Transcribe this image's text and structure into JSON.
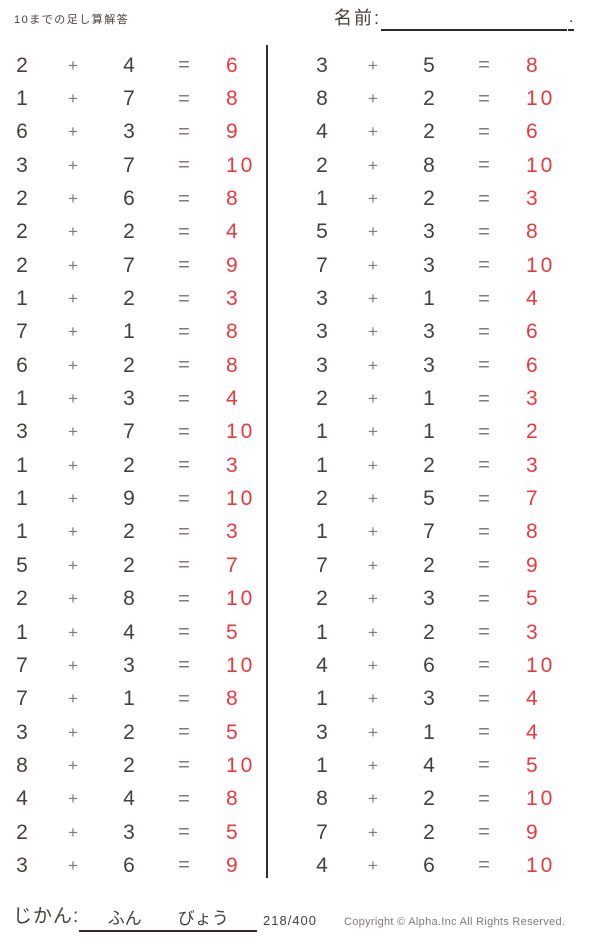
{
  "header": {
    "title": "10までの足し算解答",
    "name_label": "名前:",
    "name_suffix": "."
  },
  "problems": {
    "operator": "+",
    "equals": "=",
    "left": [
      {
        "a": 2,
        "b": 4,
        "ans": 6
      },
      {
        "a": 1,
        "b": 7,
        "ans": 8
      },
      {
        "a": 6,
        "b": 3,
        "ans": 9
      },
      {
        "a": 3,
        "b": 7,
        "ans": 10
      },
      {
        "a": 2,
        "b": 6,
        "ans": 8
      },
      {
        "a": 2,
        "b": 2,
        "ans": 4
      },
      {
        "a": 2,
        "b": 7,
        "ans": 9
      },
      {
        "a": 1,
        "b": 2,
        "ans": 3
      },
      {
        "a": 7,
        "b": 1,
        "ans": 8
      },
      {
        "a": 6,
        "b": 2,
        "ans": 8
      },
      {
        "a": 1,
        "b": 3,
        "ans": 4
      },
      {
        "a": 3,
        "b": 7,
        "ans": 10
      },
      {
        "a": 1,
        "b": 2,
        "ans": 3
      },
      {
        "a": 1,
        "b": 9,
        "ans": 10
      },
      {
        "a": 1,
        "b": 2,
        "ans": 3
      },
      {
        "a": 5,
        "b": 2,
        "ans": 7
      },
      {
        "a": 2,
        "b": 8,
        "ans": 10
      },
      {
        "a": 1,
        "b": 4,
        "ans": 5
      },
      {
        "a": 7,
        "b": 3,
        "ans": 10
      },
      {
        "a": 7,
        "b": 1,
        "ans": 8
      },
      {
        "a": 3,
        "b": 2,
        "ans": 5
      },
      {
        "a": 8,
        "b": 2,
        "ans": 10
      },
      {
        "a": 4,
        "b": 4,
        "ans": 8
      },
      {
        "a": 2,
        "b": 3,
        "ans": 5
      },
      {
        "a": 3,
        "b": 6,
        "ans": 9
      }
    ],
    "right": [
      {
        "a": 3,
        "b": 5,
        "ans": 8
      },
      {
        "a": 8,
        "b": 2,
        "ans": 10
      },
      {
        "a": 4,
        "b": 2,
        "ans": 6
      },
      {
        "a": 2,
        "b": 8,
        "ans": 10
      },
      {
        "a": 1,
        "b": 2,
        "ans": 3
      },
      {
        "a": 5,
        "b": 3,
        "ans": 8
      },
      {
        "a": 7,
        "b": 3,
        "ans": 10
      },
      {
        "a": 3,
        "b": 1,
        "ans": 4
      },
      {
        "a": 3,
        "b": 3,
        "ans": 6
      },
      {
        "a": 3,
        "b": 3,
        "ans": 6
      },
      {
        "a": 2,
        "b": 1,
        "ans": 3
      },
      {
        "a": 1,
        "b": 1,
        "ans": 2
      },
      {
        "a": 1,
        "b": 2,
        "ans": 3
      },
      {
        "a": 2,
        "b": 5,
        "ans": 7
      },
      {
        "a": 1,
        "b": 7,
        "ans": 8
      },
      {
        "a": 7,
        "b": 2,
        "ans": 9
      },
      {
        "a": 2,
        "b": 3,
        "ans": 5
      },
      {
        "a": 1,
        "b": 2,
        "ans": 3
      },
      {
        "a": 4,
        "b": 6,
        "ans": 10
      },
      {
        "a": 1,
        "b": 3,
        "ans": 4
      },
      {
        "a": 3,
        "b": 1,
        "ans": 4
      },
      {
        "a": 1,
        "b": 4,
        "ans": 5
      },
      {
        "a": 8,
        "b": 2,
        "ans": 10
      },
      {
        "a": 7,
        "b": 2,
        "ans": 9
      },
      {
        "a": 4,
        "b": 6,
        "ans": 10
      }
    ]
  },
  "footer": {
    "time_label": "じかん:",
    "time_unit_minutes": "ふん",
    "time_unit_seconds": "びょう",
    "page_number": "218/400",
    "copyright": "Copyright ©  Alpha.Inc All Rights Reserved."
  },
  "colors": {
    "digit": "#46403f",
    "operator": "#7f7b7a",
    "answer": "#e8393f",
    "line": "#2f2b2a"
  }
}
